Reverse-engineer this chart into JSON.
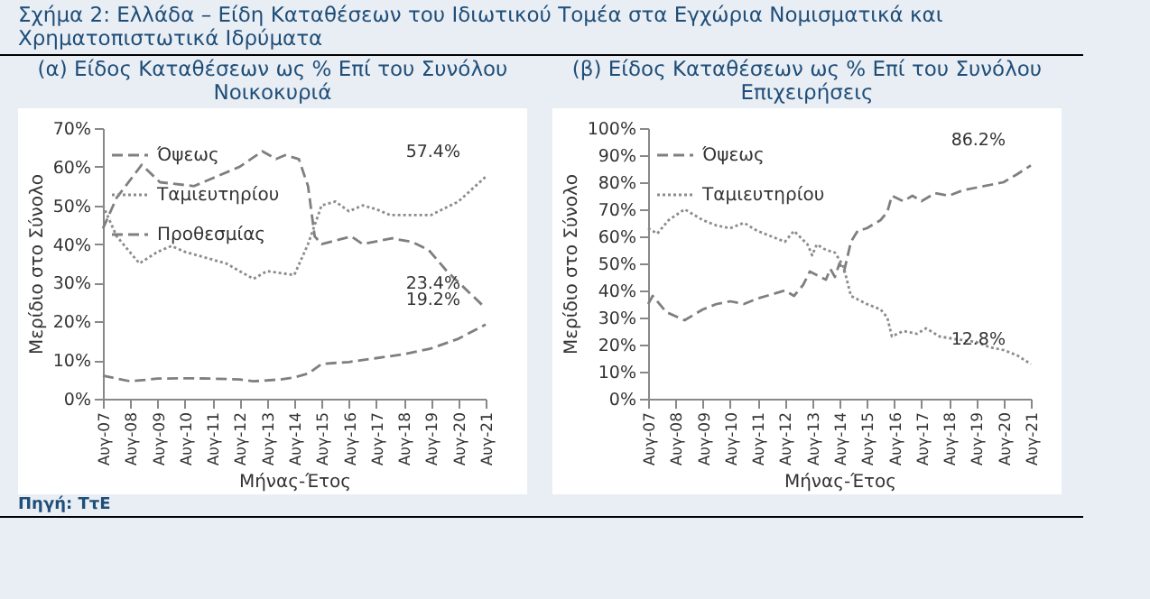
{
  "chart_data": [
    {
      "type": "line",
      "title": "Σχήμα 2: Ελλάδα – Είδη Καταθέσεων του Ιδιωτικού Τομέα στα Εγχώρια Νομισματικά και Χρηματοπιστωτικά Ιδρύματα",
      "subtitle": "(α) Είδος Καταθέσεων ως % Επί του Συνόλου Νοικοκυριά",
      "xlabel": "Μήνας-Έτος",
      "ylabel": "Μερίδιο στο Σύνολο",
      "xlim": [
        "2007-08",
        "2021-08"
      ],
      "xticks": [
        {
          "value": "2007-08",
          "label": "Αυγ-07"
        },
        {
          "value": "2008-08",
          "label": "Αυγ-08"
        },
        {
          "value": "2009-08",
          "label": "Αυγ-09"
        },
        {
          "value": "2010-08",
          "label": "Αυγ-10"
        },
        {
          "value": "2011-08",
          "label": "Αυγ-11"
        },
        {
          "value": "2012-08",
          "label": "Αυγ-12"
        },
        {
          "value": "2013-08",
          "label": "Αυγ-13"
        },
        {
          "value": "2014-08",
          "label": "Αυγ-14"
        },
        {
          "value": "2015-08",
          "label": "Αυγ-15"
        },
        {
          "value": "2016-08",
          "label": "Αυγ-16"
        },
        {
          "value": "2017-08",
          "label": "Αυγ-17"
        },
        {
          "value": "2018-08",
          "label": "Αυγ-18"
        },
        {
          "value": "2019-08",
          "label": "Αυγ-19"
        },
        {
          "value": "2020-08",
          "label": "Αυγ-20"
        },
        {
          "value": "2021-08",
          "label": "Αυγ-21"
        }
      ],
      "ylim": [
        0,
        70
      ],
      "yticks": [
        {
          "value": 0,
          "label": "0%"
        },
        {
          "value": 10,
          "label": "10%"
        },
        {
          "value": 20,
          "label": "20%"
        },
        {
          "value": 30,
          "label": "30%"
        },
        {
          "value": 40,
          "label": "40%"
        },
        {
          "value": 50,
          "label": "50%"
        },
        {
          "value": 60,
          "label": "60%"
        },
        {
          "value": 70,
          "label": "70%"
        }
      ],
      "legend": "top left",
      "marker": "none",
      "series": [
        {
          "name": "Όψεως",
          "color": "#7f7f7f",
          "line_style": "dashed",
          "x": [
            "2007-08",
            "2008-08",
            "2009-08",
            "2010-08",
            "2011-08",
            "2012-08",
            "2013-02",
            "2014-02",
            "2014-08",
            "2015-02",
            "2015-08",
            "2016-08",
            "2017-08",
            "2018-08",
            "2019-08",
            "2020-08",
            "2021-08"
          ],
          "values": [
            6,
            4.5,
            5.2,
            5.3,
            5.2,
            5,
            4.5,
            5,
            5.5,
            6.5,
            9,
            9.5,
            10.5,
            11.5,
            13,
            15.5,
            19.2
          ]
        },
        {
          "name": "Ταμιευτηρίου",
          "color": "#8c8c8c",
          "line_style": "dotted",
          "x": [
            "2007-08",
            "2008-02",
            "2008-12",
            "2009-08",
            "2010-02",
            "2010-08",
            "2011-08",
            "2012-02",
            "2013-02",
            "2013-08",
            "2014-08",
            "2015-02",
            "2015-08",
            "2016-02",
            "2016-08",
            "2017-02",
            "2017-08",
            "2018-02",
            "2019-08",
            "2020-08",
            "2021-08"
          ],
          "values": [
            50,
            42,
            35,
            38,
            39.5,
            38,
            36,
            35,
            31,
            33,
            32,
            40,
            50,
            51,
            48.5,
            50,
            49,
            47.5,
            47.5,
            51,
            57.4
          ]
        },
        {
          "name": "Προθεσμίας",
          "color": "#7f7f7f",
          "line_style": "dashed",
          "x": [
            "2007-08",
            "2008-02",
            "2009-01",
            "2009-09",
            "2010-12",
            "2011-08",
            "2012-08",
            "2013-06",
            "2013-12",
            "2014-04",
            "2014-10",
            "2015-02",
            "2015-05",
            "2015-08",
            "2016-09",
            "2017-02",
            "2018-03",
            "2018-12",
            "2019-07",
            "2020-03",
            "2021-08"
          ],
          "values": [
            44,
            52,
            60.5,
            56,
            55,
            57,
            60,
            64,
            62,
            63,
            62,
            55,
            42,
            40,
            42,
            40,
            41.5,
            40.5,
            38.5,
            33,
            23.4
          ]
        }
      ],
      "annotations": [
        "Πηγή: ΤτΕ",
        {
          "text": "57.4%",
          "x": "2021-08",
          "y": 57.4
        },
        {
          "text": "23.4%",
          "x": "2021-08",
          "y": 23.4
        },
        {
          "text": "19.2%",
          "x": "2021-08",
          "y": 19.2
        }
      ]
    },
    {
      "type": "line",
      "subtitle": "(β) Είδος Καταθέσεων ως % Επί του Συνόλου Επιχειρήσεις",
      "xlabel": "Μήνας-Έτος",
      "ylabel": "Μερίδιο στο Σύνολο",
      "xlim": [
        "2007-08",
        "2021-08"
      ],
      "xticks": [
        {
          "value": "2007-08",
          "label": "Αυγ-07"
        },
        {
          "value": "2008-08",
          "label": "Αυγ-08"
        },
        {
          "value": "2009-08",
          "label": "Αυγ-09"
        },
        {
          "value": "2010-08",
          "label": "Αυγ-10"
        },
        {
          "value": "2011-08",
          "label": "Αυγ-11"
        },
        {
          "value": "2012-08",
          "label": "Αυγ-12"
        },
        {
          "value": "2013-08",
          "label": "Αυγ-13"
        },
        {
          "value": "2014-08",
          "label": "Αυγ-14"
        },
        {
          "value": "2015-08",
          "label": "Αυγ-15"
        },
        {
          "value": "2016-08",
          "label": "Αυγ-16"
        },
        {
          "value": "2017-08",
          "label": "Αυγ-17"
        },
        {
          "value": "2018-08",
          "label": "Αυγ-18"
        },
        {
          "value": "2019-08",
          "label": "Αυγ-19"
        },
        {
          "value": "2020-08",
          "label": "Αυγ-20"
        },
        {
          "value": "2021-08",
          "label": "Αυγ-21"
        }
      ],
      "ylim": [
        0,
        100
      ],
      "yticks": [
        {
          "value": 0,
          "label": "0%"
        },
        {
          "value": 10,
          "label": "10%"
        },
        {
          "value": 20,
          "label": "20%"
        },
        {
          "value": 30,
          "label": "30%"
        },
        {
          "value": 40,
          "label": "40%"
        },
        {
          "value": 50,
          "label": "50%"
        },
        {
          "value": 60,
          "label": "60%"
        },
        {
          "value": 70,
          "label": "70%"
        },
        {
          "value": 80,
          "label": "80%"
        },
        {
          "value": 90,
          "label": "90%"
        },
        {
          "value": 100,
          "label": "100%"
        }
      ],
      "legend": "top left",
      "marker": "none",
      "series": [
        {
          "name": "Όψεως",
          "color": "#7f7f7f",
          "line_style": "dashed",
          "x": [
            "2007-08",
            "2007-10",
            "2008-04",
            "2008-12",
            "2009-08",
            "2010-02",
            "2010-08",
            "2011-02",
            "2011-08",
            "2012-08",
            "2012-12",
            "2013-04",
            "2013-07",
            "2014-02",
            "2014-04",
            "2014-06",
            "2014-08",
            "2014-10",
            "2015-01",
            "2015-04",
            "2015-08",
            "2016-02",
            "2016-05",
            "2016-07",
            "2016-12",
            "2017-04",
            "2017-08",
            "2018-02",
            "2018-08",
            "2019-02",
            "2019-08",
            "2020-02",
            "2020-08",
            "2021-02",
            "2021-08"
          ],
          "values": [
            35,
            38,
            32,
            29,
            33,
            35,
            36,
            35,
            37,
            40,
            38,
            42,
            47,
            44,
            48,
            45,
            50,
            47,
            58,
            62,
            63,
            66,
            69,
            75,
            73,
            75,
            73,
            76,
            75,
            77,
            78,
            79,
            80,
            83,
            86.2
          ]
        },
        {
          "name": "Ταμιευτηρίου",
          "color": "#8c8c8c",
          "line_style": "dotted",
          "x": [
            "2007-08",
            "2007-12",
            "2008-05",
            "2008-12",
            "2009-08",
            "2010-02",
            "2010-08",
            "2011-02",
            "2011-08",
            "2012-02",
            "2012-08",
            "2012-12",
            "2013-06",
            "2013-08",
            "2013-10",
            "2014-02",
            "2014-06",
            "2014-09",
            "2014-10",
            "2015-01",
            "2015-08",
            "2016-02",
            "2016-05",
            "2016-07",
            "2016-12",
            "2017-06",
            "2017-10",
            "2018-04",
            "2018-11",
            "2019-08",
            "2020-02",
            "2020-08",
            "2021-02",
            "2021-08"
          ],
          "values": [
            63,
            61,
            66,
            70,
            66,
            64,
            63,
            65,
            62,
            60,
            58,
            62,
            57,
            53,
            57,
            55,
            54,
            50,
            48,
            38,
            35,
            33,
            30,
            23,
            25,
            24,
            26,
            23,
            22,
            21,
            19,
            18,
            16,
            12.8
          ]
        }
      ],
      "annotations": [
        {
          "text": "86.2%",
          "x": "2021-08",
          "y": 86.2
        },
        {
          "text": "12.8%",
          "x": "2021-08",
          "y": 12.8
        }
      ]
    }
  ]
}
